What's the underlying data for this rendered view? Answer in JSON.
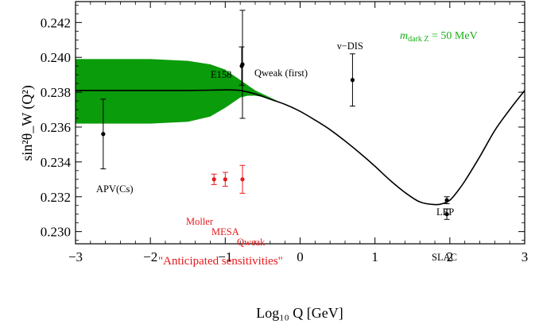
{
  "chart_data": {
    "type": "line",
    "title": "",
    "xlabel": "Log₁₀ Q [GeV]",
    "ylabel": "sin²θ_W (Q²)",
    "xlim": [
      -3,
      3
    ],
    "ylim": [
      0.2293,
      0.2432
    ],
    "x_ticks": [
      -3,
      -2,
      -1,
      0,
      1,
      2,
      3
    ],
    "x_tick_labels": [
      "−3",
      "−2",
      "−1",
      "0",
      "1",
      "2",
      "3"
    ],
    "y_ticks": [
      0.23,
      0.232,
      0.234,
      0.236,
      0.238,
      0.24,
      0.242
    ],
    "y_tick_labels": [
      "0.230",
      "0.232",
      "0.234",
      "0.236",
      "0.238",
      "0.240",
      "0.242"
    ],
    "grid": false,
    "colors": {
      "band": "#0a9c0a",
      "curve": "#000000",
      "anticipated": "#e8191c",
      "measured": "#000000",
      "note": "#16b216"
    },
    "standard_model_curve": {
      "x": [
        -3,
        -2.5,
        -2,
        -1.5,
        -1.2,
        -1,
        -0.8,
        -0.6,
        -0.4,
        -0.2,
        0,
        0.2,
        0.4,
        0.6,
        0.8,
        1,
        1.2,
        1.4,
        1.6,
        1.8,
        1.9,
        2,
        2.1,
        2.2,
        2.4,
        2.6,
        2.8,
        3
      ],
      "y": [
        0.2381,
        0.2381,
        0.2381,
        0.2381,
        0.23812,
        0.23813,
        0.2381,
        0.2379,
        0.2376,
        0.2373,
        0.2369,
        0.2364,
        0.23585,
        0.2352,
        0.2345,
        0.23375,
        0.23295,
        0.23225,
        0.2317,
        0.23155,
        0.2316,
        0.2318,
        0.2323,
        0.2329,
        0.2343,
        0.2358,
        0.237,
        0.2381
      ]
    },
    "dark_z_band": {
      "x": [
        -3,
        -2.5,
        -2,
        -1.5,
        -1.2,
        -1.0,
        -0.9,
        -0.8,
        -0.7,
        -0.6,
        -0.45,
        -0.3
      ],
      "upper": [
        0.2399,
        0.2399,
        0.2399,
        0.2398,
        0.2396,
        0.2393,
        0.239,
        0.2387,
        0.2384,
        0.2381,
        0.2378,
        0.2375
      ],
      "lower": [
        0.2362,
        0.2362,
        0.2362,
        0.2363,
        0.2366,
        0.2371,
        0.2374,
        0.2377,
        0.2378,
        0.2378,
        0.2377,
        0.2375
      ]
    },
    "measurements": [
      {
        "label": "APV(Cs)",
        "x": -2.63,
        "y": 0.2356,
        "err": 0.002
      },
      {
        "label": "E158",
        "x": -0.78,
        "y": 0.2395,
        "err": 0.0011
      },
      {
        "label": "Qweak (first)",
        "x": -0.77,
        "y": 0.2396,
        "err": 0.0031
      },
      {
        "label": "ν−DIS",
        "x": 0.7,
        "y": 0.2387,
        "err": 0.0015
      },
      {
        "label": "LEP",
        "x": 1.96,
        "y": 0.2318,
        "err": 0.0002
      },
      {
        "label": "SLAC",
        "x": 1.96,
        "y": 0.231,
        "err": 0.0003
      }
    ],
    "anticipated": [
      {
        "label": "Moller",
        "x": -1.15,
        "y": 0.233,
        "err": 0.0003
      },
      {
        "label": "MESA",
        "x": -1.0,
        "y": 0.233,
        "err": 0.0004
      },
      {
        "label": "Qweak",
        "x": -0.77,
        "y": 0.233,
        "err": 0.0008
      }
    ],
    "annotations": {
      "anticipated_note": "\"Anticipated sensitivities\"",
      "mass_prefix": "m",
      "mass_sub": "dark Z",
      "mass_suffix": " = 50 MeV"
    }
  }
}
